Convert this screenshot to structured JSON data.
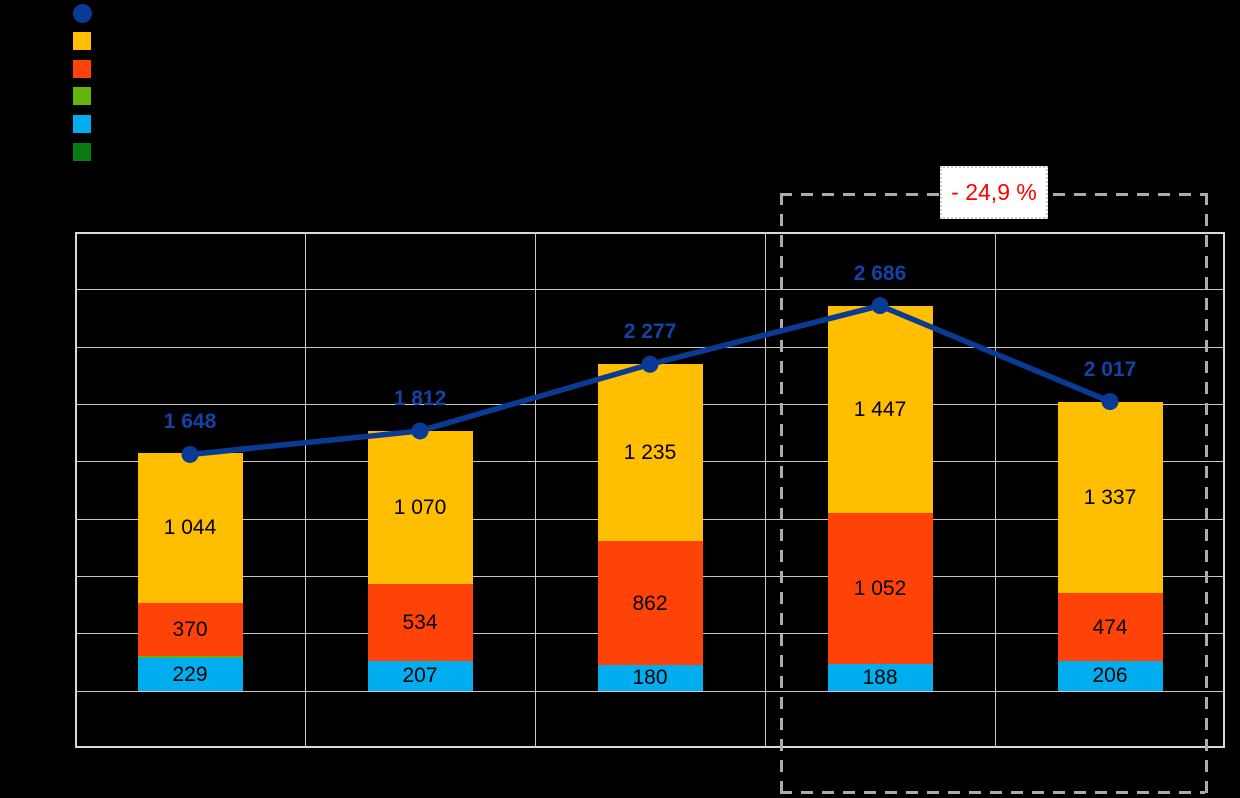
{
  "legend": {
    "items": [
      {
        "name": "total-line",
        "shape": "circle",
        "color": "#0A3B94"
      },
      {
        "name": "yellow-series",
        "shape": "square",
        "color": "#FFBF00"
      },
      {
        "name": "orange-series",
        "shape": "square",
        "color": "#FF4208"
      },
      {
        "name": "green-series",
        "shape": "square",
        "color": "#63B50E"
      },
      {
        "name": "cyan-series",
        "shape": "square",
        "color": "#00AEEF"
      },
      {
        "name": "dark-green-series",
        "shape": "square",
        "color": "#0B7A12"
      }
    ]
  },
  "chart_data": {
    "type": "combo-stacked-bar-line",
    "category_count": 5,
    "categories": [
      "",
      "",
      "",
      "",
      ""
    ],
    "bar_series": [
      {
        "name": "cyan",
        "color": "#00AEEF",
        "values": [
          229,
          207,
          180,
          188,
          206
        ],
        "labels": [
          "229",
          "207",
          "180",
          "188",
          "206"
        ]
      },
      {
        "name": "green",
        "color": "#63B50E",
        "values": [
          5,
          1,
          0,
          0,
          0
        ],
        "labels": [
          "",
          "",
          "",
          "",
          ""
        ]
      },
      {
        "name": "orange",
        "color": "#FF4208",
        "values": [
          370,
          534,
          862,
          1052,
          474
        ],
        "labels": [
          "370",
          "534",
          "862",
          "1 052",
          "474"
        ]
      },
      {
        "name": "yellow",
        "color": "#FFBF00",
        "values": [
          1044,
          1070,
          1235,
          1447,
          1337
        ],
        "labels": [
          "1 044",
          "1 070",
          "1 235",
          "1 447",
          "1 337"
        ]
      }
    ],
    "line_series": {
      "name": "total",
      "color": "#0A3B94",
      "label_color": "#1243A6",
      "values": [
        1648,
        1812,
        2277,
        2686,
        2017
      ],
      "labels": [
        "1 648",
        "1 812",
        "2 277",
        "2 686",
        "2 017"
      ]
    },
    "y_axis": {
      "min": -400,
      "max": 3200,
      "step": 400,
      "labels_visible": false
    },
    "x_axis": {
      "labels_visible": false
    },
    "grid": true,
    "legend_position": "top-left",
    "annotation": {
      "text": "- 24,9 %",
      "text_color": "#FF0000",
      "box_fill": "#FFFFFF",
      "region_categories": [
        3,
        4
      ],
      "region_style": "dashed-rectangle"
    }
  }
}
